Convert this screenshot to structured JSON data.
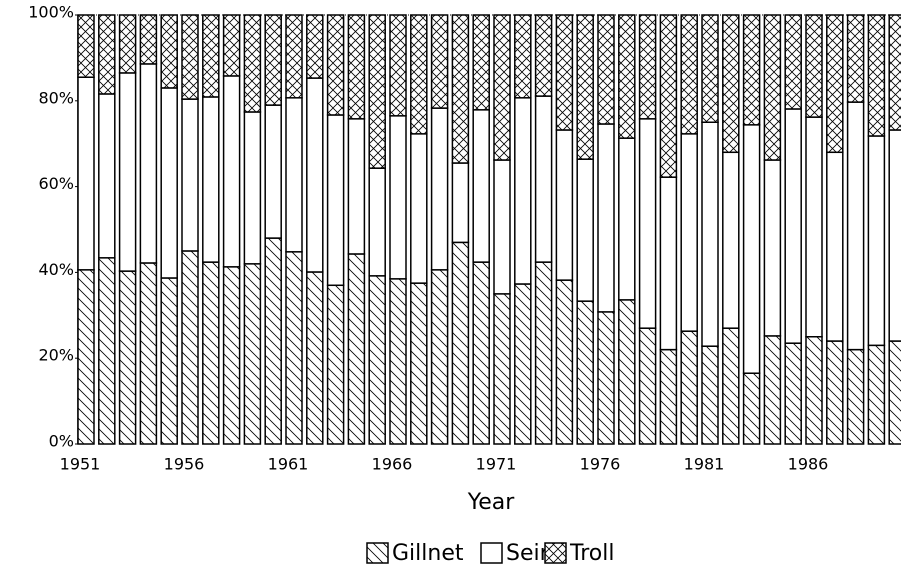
{
  "chart_data": {
    "type": "stacked_bar",
    "xlabel": "Year",
    "categories": [
      1951,
      null,
      null,
      null,
      null,
      1956,
      null,
      null,
      null,
      null,
      1961,
      null,
      null,
      null,
      null,
      1966,
      null,
      null,
      null,
      null,
      1971,
      null,
      null,
      null,
      null,
      1976,
      null,
      null,
      null,
      null,
      1981,
      null,
      null,
      null,
      null,
      1986,
      null,
      null,
      null,
      null
    ],
    "series": [
      {
        "name": "Gillnet",
        "color": "#000000",
        "pattern": "diagonal",
        "values": [
          40.6,
          43.4,
          40.3,
          42.2,
          38.7,
          45,
          42.4,
          41.3,
          42,
          48,
          44.8,
          40.1,
          37,
          44.3,
          39.2,
          38.5,
          37.5,
          40.6,
          47,
          42.4,
          35,
          37.3,
          42.4,
          38.2,
          33.3,
          30.8,
          33.6,
          27,
          22,
          26.3,
          22.8,
          27,
          16.5,
          25.2,
          23.5,
          25,
          24,
          22,
          23,
          24
        ]
      },
      {
        "name": "Seine",
        "color": "#000000",
        "pattern": "none",
        "values": [
          44.9,
          38.2,
          46.2,
          46.4,
          44.3,
          35.4,
          38.5,
          44.5,
          35.4,
          31,
          35.9,
          45.2,
          39.7,
          31.5,
          25.1,
          38,
          34.8,
          37.7,
          18.5,
          35.5,
          31.2,
          43.4,
          38.7,
          35,
          33.1,
          43.8,
          37.7,
          48.8,
          40.2,
          46,
          52.2,
          41,
          57.9,
          41,
          54.6,
          51.2,
          44,
          57.7,
          48.8,
          49.2
        ]
      },
      {
        "name": "Troll",
        "color": "#000000",
        "pattern": "crosshatch",
        "values": [
          14.5,
          18.4,
          13.5,
          11.4,
          17,
          19.6,
          19.1,
          14.2,
          22.6,
          21,
          19.3,
          14.7,
          23.3,
          24.2,
          35.7,
          23.5,
          27.7,
          21.7,
          34.5,
          22.1,
          33.8,
          19.3,
          18.9,
          26.8,
          33.6,
          25.4,
          28.7,
          24.2,
          37.8,
          27.7,
          25,
          32,
          25.6,
          33.8,
          21.9,
          23.8,
          32,
          20.3,
          28.2,
          26.8
        ]
      }
    ],
    "ylim": [
      0,
      100
    ],
    "yticks": [
      {
        "value": 0,
        "label": "0%"
      },
      {
        "value": 20,
        "label": "20%"
      },
      {
        "value": 40,
        "label": "40%"
      },
      {
        "value": 60,
        "label": "60%"
      },
      {
        "value": 80,
        "label": "80%"
      },
      {
        "value": 100,
        "label": "100%"
      }
    ],
    "legend": "bottom"
  }
}
